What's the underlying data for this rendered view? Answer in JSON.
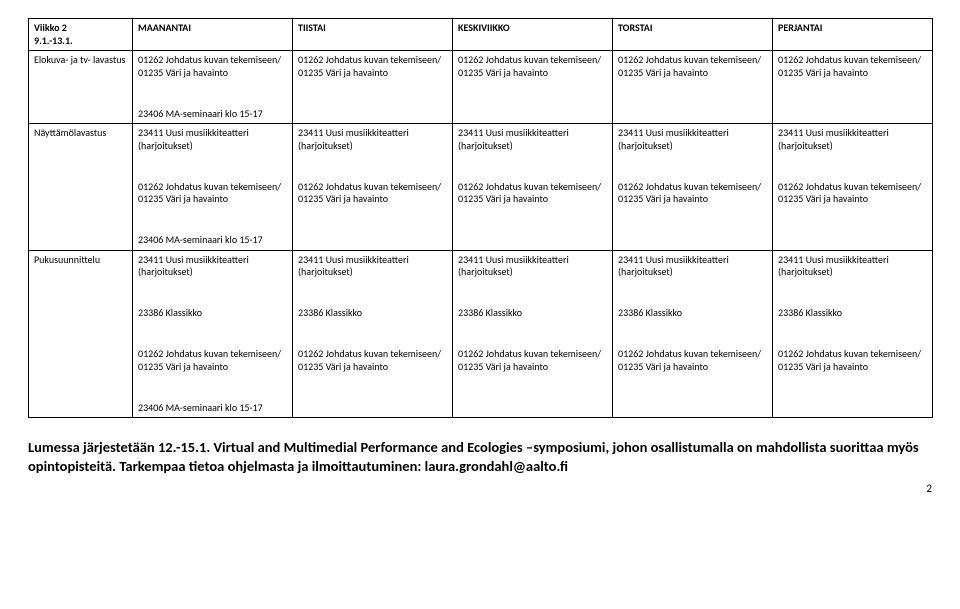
{
  "table": {
    "header": {
      "weekLabel": "Viikko 2\n9.1.-13.1.",
      "days": [
        "MAANANTAI",
        "TIISTAI",
        "KESKIVIIKKO",
        "TORSTAI",
        "PERJANTAI"
      ]
    },
    "rows": [
      {
        "label": "Elokuva- ja tv-\nlavastus",
        "cells": [
          [
            {
              "text": "01262 Johdatus kuvan tekemiseen/ 01235 Väri ja havainto",
              "bold": false
            },
            {
              "text": "",
              "bold": false
            },
            {
              "text": "23406 MA-seminaari klo 15-17",
              "bold": false
            }
          ],
          [
            {
              "text": "01262 Johdatus kuvan tekemiseen/ 01235 Väri ja havainto",
              "bold": false
            }
          ],
          [
            {
              "text": "01262 Johdatus kuvan tekemiseen/ 01235 Väri ja havainto",
              "bold": false
            }
          ],
          [
            {
              "text": "01262 Johdatus kuvan tekemiseen/ 01235 Väri ja havainto",
              "bold": false
            }
          ],
          [
            {
              "text": "01262 Johdatus kuvan tekemiseen/ 01235 Väri ja havainto",
              "bold": false
            }
          ]
        ]
      },
      {
        "label": "Näyttämölavastus",
        "cells": [
          [
            {
              "text": "23411 Uusi musiikkiteatteri (harjoitukset)",
              "bold": false
            },
            {
              "text": "",
              "bold": false
            },
            {
              "text": "01262 Johdatus kuvan tekemiseen/ 01235 Väri ja havainto",
              "bold": false
            },
            {
              "text": "",
              "bold": false
            },
            {
              "text": "23406 MA-seminaari klo 15-17",
              "bold": false
            }
          ],
          [
            {
              "text": "23411 Uusi musiikkiteatteri (harjoitukset)",
              "bold": false
            },
            {
              "text": "",
              "bold": false
            },
            {
              "text": "01262 Johdatus kuvan tekemiseen/ 01235 Väri ja havainto",
              "bold": false
            }
          ],
          [
            {
              "text": "23411 Uusi musiikkiteatteri (harjoitukset)",
              "bold": false
            },
            {
              "text": "",
              "bold": false
            },
            {
              "text": "01262 Johdatus kuvan tekemiseen/ 01235 Väri ja havainto",
              "bold": false
            }
          ],
          [
            {
              "text": "23411 Uusi musiikkiteatteri (harjoitukset)",
              "bold": false
            },
            {
              "text": "",
              "bold": false
            },
            {
              "text": "01262 Johdatus kuvan tekemiseen/ 01235 Väri ja havainto",
              "bold": false
            }
          ],
          [
            {
              "text": "23411 Uusi musiikkiteatteri (harjoitukset)",
              "bold": false
            },
            {
              "text": "",
              "bold": false
            },
            {
              "text": "01262 Johdatus kuvan tekemiseen/ 01235 Väri ja havainto",
              "bold": false
            }
          ]
        ]
      },
      {
        "label": "Pukusuunnittelu",
        "cells": [
          [
            {
              "text": "23411 Uusi musiikkiteatteri (harjoitukset)",
              "bold": false
            },
            {
              "text": "",
              "bold": false
            },
            {
              "text": "23386 Klassikko",
              "bold": false
            },
            {
              "text": "",
              "bold": false
            },
            {
              "text": "01262 Johdatus kuvan tekemiseen/ 01235 Väri ja havainto",
              "bold": false
            },
            {
              "text": "",
              "bold": false
            },
            {
              "text": "23406 MA-seminaari klo 15-17",
              "bold": false
            }
          ],
          [
            {
              "text": "23411 Uusi musiikkiteatteri (harjoitukset)",
              "bold": false
            },
            {
              "text": "",
              "bold": false
            },
            {
              "text": "23386 Klassikko",
              "bold": false
            },
            {
              "text": "",
              "bold": false
            },
            {
              "text": "01262 Johdatus kuvan tekemiseen/ 01235 Väri ja havainto",
              "bold": false
            }
          ],
          [
            {
              "text": "23411 Uusi musiikkiteatteri (harjoitukset)",
              "bold": false
            },
            {
              "text": "",
              "bold": false
            },
            {
              "text": "23386 Klassikko",
              "bold": false
            },
            {
              "text": "",
              "bold": false
            },
            {
              "text": "01262 Johdatus kuvan tekemiseen/ 01235 Väri ja havainto",
              "bold": false
            }
          ],
          [
            {
              "text": "23411 Uusi musiikkiteatteri (harjoitukset)",
              "bold": false
            },
            {
              "text": "",
              "bold": false
            },
            {
              "text": "23386 Klassikko",
              "bold": false
            },
            {
              "text": "",
              "bold": false
            },
            {
              "text": "01262 Johdatus kuvan tekemiseen/ 01235 Väri ja havainto",
              "bold": false
            }
          ],
          [
            {
              "text": "23411 Uusi musiikkiteatteri (harjoitukset)",
              "bold": false
            },
            {
              "text": "",
              "bold": false
            },
            {
              "text": "23386 Klassikko",
              "bold": false
            },
            {
              "text": "",
              "bold": false
            },
            {
              "text": "01262 Johdatus kuvan tekemiseen/ 01235 Väri ja havainto",
              "bold": false
            }
          ]
        ]
      }
    ]
  },
  "footnote": "Lumessa järjestetään 12.-15.1. Virtual and Multimedial Performance and Ecologies –symposiumi, johon osallistumalla on mahdollista suorittaa myös opintopisteitä. Tarkempaa tietoa ohjelmasta ja ilmoittautuminen: laura.grondahl@aalto.fi",
  "pageNumber": "2"
}
